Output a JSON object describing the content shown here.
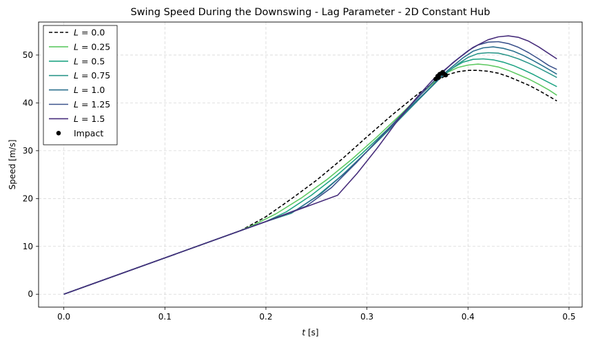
{
  "chart_data": {
    "type": "line",
    "title": "Swing Speed During the Downswing - Lag Parameter - 2D Constant Hub",
    "xlabel": "t [s]",
    "ylabel": "Speed [m/s]",
    "xlim": [
      -0.025,
      0.513
    ],
    "ylim": [
      -2.7,
      56.9
    ],
    "xticks": [
      0.0,
      0.1,
      0.2,
      0.3,
      0.4,
      0.5
    ],
    "xtick_labels": [
      "0.0",
      "0.1",
      "0.2",
      "0.3",
      "0.4",
      "0.5"
    ],
    "yticks": [
      0,
      10,
      20,
      30,
      40,
      50
    ],
    "ytick_labels": [
      "0",
      "10",
      "20",
      "30",
      "40",
      "50"
    ],
    "grid": true,
    "legend_position": "top-left",
    "series": [
      {
        "name": "L = 0.0",
        "label_var": "L",
        "label_val": "0.0",
        "color": "#000000",
        "style": "dashed",
        "x": [
          0.0,
          0.1,
          0.175,
          0.2,
          0.225,
          0.25,
          0.275,
          0.3,
          0.325,
          0.35,
          0.36,
          0.37,
          0.38,
          0.39,
          0.4,
          0.41,
          0.42,
          0.43,
          0.44,
          0.45,
          0.46,
          0.47,
          0.48,
          0.488
        ],
        "y": [
          0.0,
          7.6,
          13.3,
          16.2,
          19.9,
          23.8,
          28.2,
          32.9,
          37.5,
          41.8,
          43.3,
          44.8,
          45.9,
          46.5,
          46.8,
          46.8,
          46.6,
          46.2,
          45.5,
          44.6,
          43.7,
          42.6,
          41.4,
          40.4
        ]
      },
      {
        "name": "L = 0.25",
        "label_var": "L",
        "label_val": "0.25",
        "color": "#5ec962",
        "style": "solid",
        "x": [
          0.0,
          0.1,
          0.175,
          0.19,
          0.21,
          0.235,
          0.26,
          0.285,
          0.31,
          0.335,
          0.355,
          0.37,
          0.38,
          0.39,
          0.4,
          0.41,
          0.42,
          0.43,
          0.44,
          0.45,
          0.46,
          0.47,
          0.48,
          0.488
        ],
        "y": [
          0.0,
          7.6,
          13.3,
          14.7,
          16.8,
          20.1,
          23.9,
          28.2,
          32.9,
          37.9,
          42.1,
          45.0,
          46.4,
          47.4,
          47.9,
          48.1,
          47.9,
          47.5,
          46.8,
          45.9,
          45.0,
          43.9,
          42.7,
          41.6
        ]
      },
      {
        "name": "L = 0.5",
        "label_var": "L",
        "label_val": "0.5",
        "color": "#21a585",
        "style": "solid",
        "x": [
          0.0,
          0.1,
          0.175,
          0.2,
          0.22,
          0.245,
          0.27,
          0.295,
          0.32,
          0.345,
          0.36,
          0.372,
          0.385,
          0.395,
          0.405,
          0.415,
          0.425,
          0.435,
          0.445,
          0.455,
          0.465,
          0.475,
          0.488
        ],
        "y": [
          0.0,
          7.6,
          13.3,
          15.2,
          17.2,
          20.7,
          24.8,
          29.4,
          34.4,
          39.6,
          42.6,
          45.2,
          47.3,
          48.5,
          49.1,
          49.2,
          49.0,
          48.5,
          47.8,
          46.9,
          45.9,
          44.8,
          43.4
        ]
      },
      {
        "name": "L = 0.75",
        "label_var": "L",
        "label_val": "0.75",
        "color": "#2c978b",
        "style": "solid",
        "x": [
          0.0,
          0.1,
          0.175,
          0.2,
          0.225,
          0.25,
          0.275,
          0.3,
          0.325,
          0.35,
          0.365,
          0.375,
          0.39,
          0.4,
          0.41,
          0.42,
          0.43,
          0.44,
          0.45,
          0.46,
          0.47,
          0.48,
          0.488
        ],
        "y": [
          0.0,
          7.6,
          13.3,
          15.2,
          16.9,
          20.4,
          24.8,
          29.8,
          35.0,
          40.4,
          43.6,
          45.7,
          48.1,
          49.5,
          50.3,
          50.5,
          50.4,
          49.9,
          49.2,
          48.3,
          47.3,
          46.2,
          45.3
        ]
      },
      {
        "name": "L = 1.0",
        "label_var": "L",
        "label_val": "1.0",
        "color": "#2a6f8e",
        "style": "solid",
        "x": [
          0.0,
          0.1,
          0.175,
          0.2,
          0.23,
          0.255,
          0.28,
          0.305,
          0.33,
          0.355,
          0.37,
          0.38,
          0.395,
          0.405,
          0.415,
          0.425,
          0.435,
          0.445,
          0.455,
          0.465,
          0.475,
          0.488
        ],
        "y": [
          0.0,
          7.6,
          13.3,
          15.2,
          17.6,
          21.1,
          25.7,
          30.9,
          36.3,
          41.6,
          44.7,
          46.8,
          49.4,
          50.8,
          51.5,
          51.7,
          51.4,
          50.8,
          49.9,
          48.8,
          47.6,
          46.0
        ]
      },
      {
        "name": "L = 1.25",
        "label_var": "L",
        "label_val": "1.25",
        "color": "#3b528b",
        "style": "solid",
        "x": [
          0.0,
          0.1,
          0.175,
          0.2,
          0.24,
          0.265,
          0.29,
          0.315,
          0.34,
          0.36,
          0.372,
          0.385,
          0.4,
          0.41,
          0.42,
          0.43,
          0.44,
          0.45,
          0.46,
          0.47,
          0.48,
          0.488
        ],
        "y": [
          0.0,
          7.6,
          13.3,
          15.2,
          18.4,
          22.3,
          27.6,
          33.2,
          38.8,
          43.2,
          45.8,
          48.4,
          50.9,
          52.1,
          52.7,
          52.8,
          52.4,
          51.6,
          50.5,
          49.2,
          47.8,
          47.0
        ]
      },
      {
        "name": "L = 1.5",
        "label_var": "L",
        "label_val": "1.5",
        "color": "#472d7b",
        "style": "solid",
        "x": [
          0.0,
          0.1,
          0.175,
          0.2,
          0.271,
          0.29,
          0.31,
          0.33,
          0.35,
          0.365,
          0.378,
          0.39,
          0.405,
          0.42,
          0.43,
          0.44,
          0.45,
          0.46,
          0.47,
          0.48,
          0.488
        ],
        "y": [
          0.0,
          7.6,
          13.3,
          15.2,
          20.7,
          25.2,
          30.5,
          36.2,
          41.3,
          44.8,
          47.1,
          49.2,
          51.6,
          53.2,
          53.8,
          54.0,
          53.7,
          52.9,
          51.7,
          50.3,
          49.2
        ]
      }
    ],
    "impact": {
      "name": "Impact",
      "color": "#000000",
      "x": [
        0.368,
        0.37,
        0.372,
        0.374,
        0.376,
        0.378,
        0.371,
        0.375
      ],
      "y": [
        45.0,
        45.6,
        46.0,
        46.2,
        46.1,
        45.8,
        45.3,
        46.4
      ]
    }
  }
}
